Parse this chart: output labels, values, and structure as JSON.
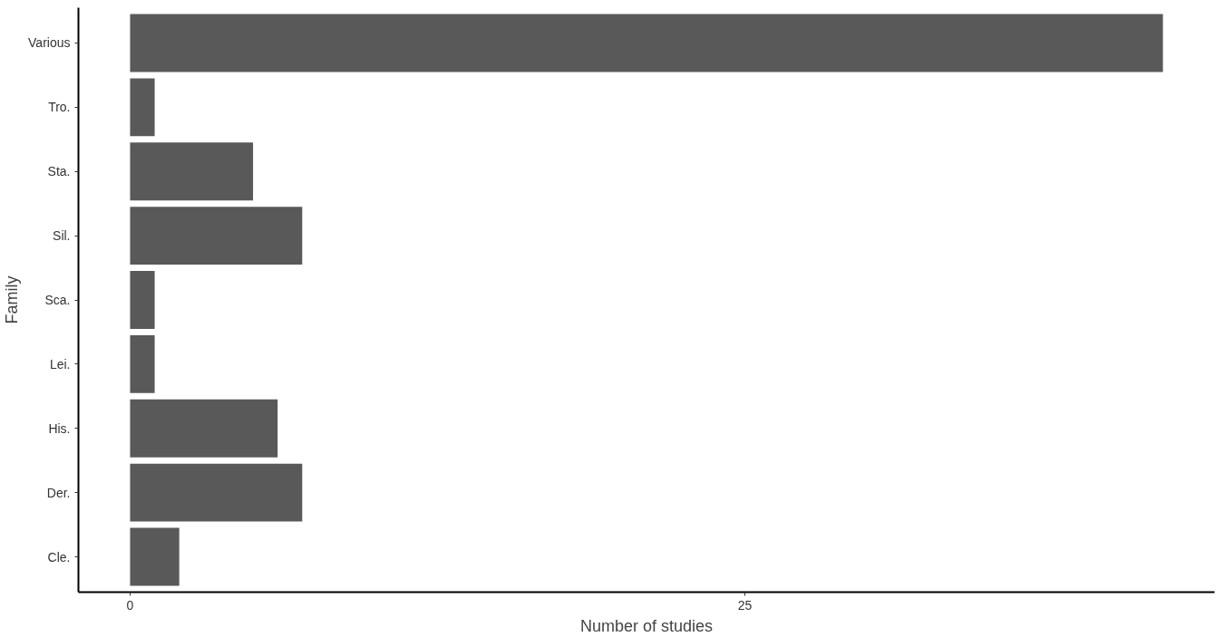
{
  "chart_data": {
    "type": "bar",
    "orientation": "horizontal",
    "xlabel": "Number of studies",
    "ylabel": "Family",
    "categories": [
      "Various",
      "Tro.",
      "Sta.",
      "Sil.",
      "Sca.",
      "Lei.",
      "His.",
      "Der.",
      "Cle."
    ],
    "values": [
      42,
      1,
      5,
      7,
      1,
      1,
      6,
      7,
      2
    ],
    "color": "#595959",
    "xlim": [
      -2.1,
      44.1
    ],
    "xticks": [
      0,
      25
    ],
    "grid": false
  }
}
